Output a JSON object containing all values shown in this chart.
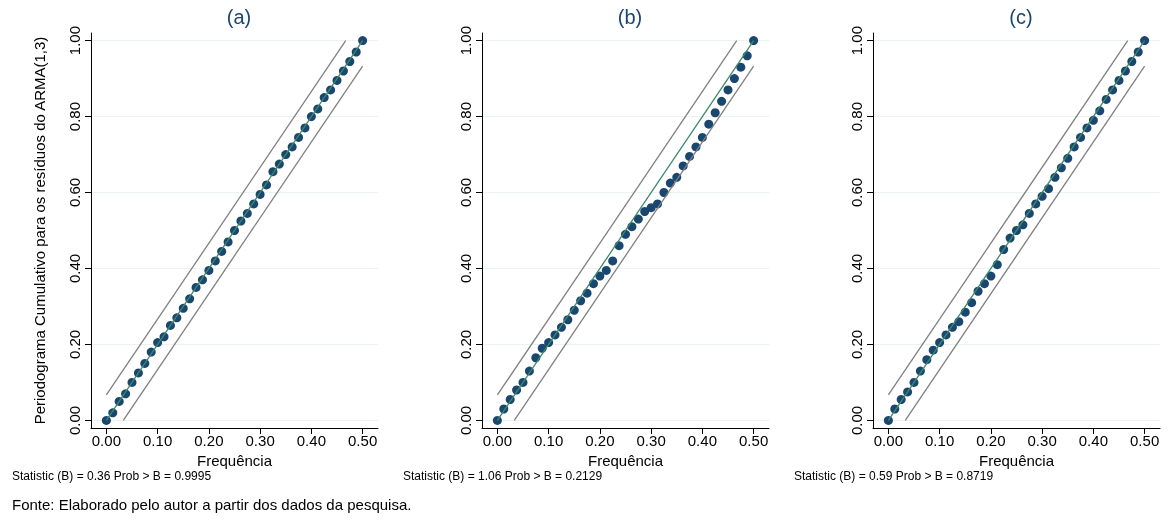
{
  "chart_data": [
    {
      "type": "scatter",
      "title": "(a)",
      "xlabel": "Frequência",
      "ylabel": "Periodograma Cumulativo para os resíduos do ARMA(1,3)",
      "x": [
        0,
        0.0125,
        0.025,
        0.0375,
        0.05,
        0.0625,
        0.075,
        0.0875,
        0.1,
        0.1125,
        0.125,
        0.1375,
        0.15,
        0.1625,
        0.175,
        0.1875,
        0.2,
        0.2125,
        0.225,
        0.2375,
        0.25,
        0.2625,
        0.275,
        0.2875,
        0.3,
        0.3125,
        0.325,
        0.3375,
        0.35,
        0.3625,
        0.375,
        0.3875,
        0.4,
        0.4125,
        0.425,
        0.4375,
        0.45,
        0.4625,
        0.475,
        0.4875,
        0.5
      ],
      "series": [
        {
          "color": "#1a476f",
          "values": [
            0,
            0.02,
            0.05,
            0.07,
            0.1,
            0.125,
            0.15,
            0.18,
            0.205,
            0.22,
            0.25,
            0.27,
            0.295,
            0.32,
            0.35,
            0.37,
            0.395,
            0.42,
            0.445,
            0.47,
            0.5,
            0.525,
            0.545,
            0.57,
            0.595,
            0.62,
            0.655,
            0.675,
            0.7,
            0.72,
            0.745,
            0.77,
            0.8,
            0.82,
            0.85,
            0.87,
            0.895,
            0.92,
            0.945,
            0.97,
            1.0
          ]
        },
        {
          "type": "line",
          "marker": "none",
          "color": "#3c8a6a",
          "x": [
            0,
            0.5
          ],
          "values": [
            0,
            1
          ]
        },
        {
          "type": "line",
          "marker": "none",
          "color": "#808080",
          "x": [
            0,
            0.467
          ],
          "values": [
            0.067,
            1
          ]
        },
        {
          "type": "line",
          "marker": "none",
          "color": "#808080",
          "x": [
            0.033,
            0.5
          ],
          "values": [
            0,
            0.933
          ]
        }
      ],
      "xlim": [
        -0.03,
        0.53
      ],
      "xticks": [
        {
          "value": 0,
          "label": "0.00"
        },
        {
          "value": 0.1,
          "label": "0.10"
        },
        {
          "value": 0.2,
          "label": "0.20"
        },
        {
          "value": 0.3,
          "label": "0.30"
        },
        {
          "value": 0.4,
          "label": "0.40"
        },
        {
          "value": 0.5,
          "label": "0.50"
        }
      ],
      "ylim": [
        -0.02,
        1.02
      ],
      "yticks": [
        {
          "value": 0,
          "label": "0.00"
        },
        {
          "value": 0.2,
          "label": "0.20"
        },
        {
          "value": 0.4,
          "label": "0.40"
        },
        {
          "value": 0.6,
          "label": "0.60"
        },
        {
          "value": 0.8,
          "label": "0.80"
        },
        {
          "value": 1,
          "label": "1.00"
        }
      ],
      "grid": "y",
      "marker": "circle",
      "annotations": [
        "Statistic (B) = 0.36   Prob > B = 0.9995",
        "Fonte: Elaborado pelo autor a partir dos dados da pesquisa."
      ]
    },
    {
      "type": "scatter",
      "title": "(b)",
      "xlabel": "Frequência",
      "x": [
        0,
        0.0125,
        0.025,
        0.0375,
        0.05,
        0.0625,
        0.075,
        0.0875,
        0.1,
        0.1125,
        0.125,
        0.1375,
        0.15,
        0.1625,
        0.175,
        0.1875,
        0.2,
        0.2125,
        0.225,
        0.2375,
        0.25,
        0.2625,
        0.275,
        0.2875,
        0.3,
        0.3125,
        0.325,
        0.3375,
        0.35,
        0.3625,
        0.375,
        0.3875,
        0.4,
        0.4125,
        0.425,
        0.4375,
        0.45,
        0.4625,
        0.475,
        0.4875,
        0.5
      ],
      "series": [
        {
          "color": "#1a476f",
          "values": [
            0,
            0.03,
            0.055,
            0.08,
            0.1,
            0.13,
            0.165,
            0.19,
            0.205,
            0.225,
            0.245,
            0.265,
            0.29,
            0.315,
            0.335,
            0.36,
            0.38,
            0.395,
            0.42,
            0.46,
            0.49,
            0.51,
            0.53,
            0.55,
            0.56,
            0.57,
            0.6,
            0.625,
            0.64,
            0.67,
            0.695,
            0.72,
            0.745,
            0.78,
            0.81,
            0.84,
            0.87,
            0.9,
            0.93,
            0.96,
            1.0
          ]
        },
        {
          "type": "line",
          "marker": "none",
          "color": "#3c8a6a",
          "x": [
            0,
            0.5
          ],
          "values": [
            0,
            1
          ]
        },
        {
          "type": "line",
          "marker": "none",
          "color": "#808080",
          "x": [
            0,
            0.467
          ],
          "values": [
            0.067,
            1
          ]
        },
        {
          "type": "line",
          "marker": "none",
          "color": "#808080",
          "x": [
            0.033,
            0.5
          ],
          "values": [
            0,
            0.933
          ]
        }
      ],
      "xlim": [
        -0.03,
        0.53
      ],
      "xticks": [
        {
          "value": 0,
          "label": "0.00"
        },
        {
          "value": 0.1,
          "label": "0.10"
        },
        {
          "value": 0.2,
          "label": "0.20"
        },
        {
          "value": 0.3,
          "label": "0.30"
        },
        {
          "value": 0.4,
          "label": "0.40"
        },
        {
          "value": 0.5,
          "label": "0.50"
        }
      ],
      "ylim": [
        -0.02,
        1.02
      ],
      "yticks": [
        {
          "value": 0,
          "label": "0.00"
        },
        {
          "value": 0.2,
          "label": "0.20"
        },
        {
          "value": 0.4,
          "label": "0.40"
        },
        {
          "value": 0.6,
          "label": "0.60"
        },
        {
          "value": 0.8,
          "label": "0.80"
        },
        {
          "value": 1,
          "label": "1.00"
        }
      ],
      "grid": "y",
      "marker": "circle",
      "annotations": [
        "Statistic (B) = 1.06   Prob > B = 0.2129"
      ]
    },
    {
      "type": "scatter",
      "title": "(c)",
      "xlabel": "Frequência",
      "x": [
        0,
        0.0125,
        0.025,
        0.0375,
        0.05,
        0.0625,
        0.075,
        0.0875,
        0.1,
        0.1125,
        0.125,
        0.1375,
        0.15,
        0.1625,
        0.175,
        0.1875,
        0.2,
        0.2125,
        0.225,
        0.2375,
        0.25,
        0.2625,
        0.275,
        0.2875,
        0.3,
        0.3125,
        0.325,
        0.3375,
        0.35,
        0.3625,
        0.375,
        0.3875,
        0.4,
        0.4125,
        0.425,
        0.4375,
        0.45,
        0.4625,
        0.475,
        0.4875,
        0.5
      ],
      "series": [
        {
          "color": "#1a476f",
          "values": [
            0,
            0.03,
            0.055,
            0.075,
            0.1,
            0.13,
            0.16,
            0.185,
            0.205,
            0.225,
            0.245,
            0.26,
            0.285,
            0.31,
            0.34,
            0.36,
            0.38,
            0.41,
            0.45,
            0.48,
            0.5,
            0.515,
            0.545,
            0.57,
            0.59,
            0.61,
            0.64,
            0.665,
            0.69,
            0.72,
            0.745,
            0.77,
            0.79,
            0.815,
            0.845,
            0.87,
            0.895,
            0.92,
            0.945,
            0.97,
            1.0
          ]
        },
        {
          "type": "line",
          "marker": "none",
          "color": "#3c8a6a",
          "x": [
            0,
            0.5
          ],
          "values": [
            0,
            1
          ]
        },
        {
          "type": "line",
          "marker": "none",
          "color": "#808080",
          "x": [
            0,
            0.467
          ],
          "values": [
            0.067,
            1
          ]
        },
        {
          "type": "line",
          "marker": "none",
          "color": "#808080",
          "x": [
            0.033,
            0.5
          ],
          "values": [
            0,
            0.933
          ]
        }
      ],
      "xlim": [
        -0.03,
        0.53
      ],
      "xticks": [
        {
          "value": 0,
          "label": "0.00"
        },
        {
          "value": 0.1,
          "label": "0.10"
        },
        {
          "value": 0.2,
          "label": "0.20"
        },
        {
          "value": 0.3,
          "label": "0.30"
        },
        {
          "value": 0.4,
          "label": "0.40"
        },
        {
          "value": 0.5,
          "label": "0.50"
        }
      ],
      "ylim": [
        -0.02,
        1.02
      ],
      "yticks": [
        {
          "value": 0,
          "label": "0.00"
        },
        {
          "value": 0.2,
          "label": "0.20"
        },
        {
          "value": 0.4,
          "label": "0.40"
        },
        {
          "value": 0.6,
          "label": "0.60"
        },
        {
          "value": 0.8,
          "label": "0.80"
        },
        {
          "value": 1,
          "label": "1.00"
        }
      ],
      "grid": "y",
      "marker": "circle",
      "annotations": [
        "Statistic (B) = 0.59   Prob > B = 0.8719"
      ]
    }
  ]
}
